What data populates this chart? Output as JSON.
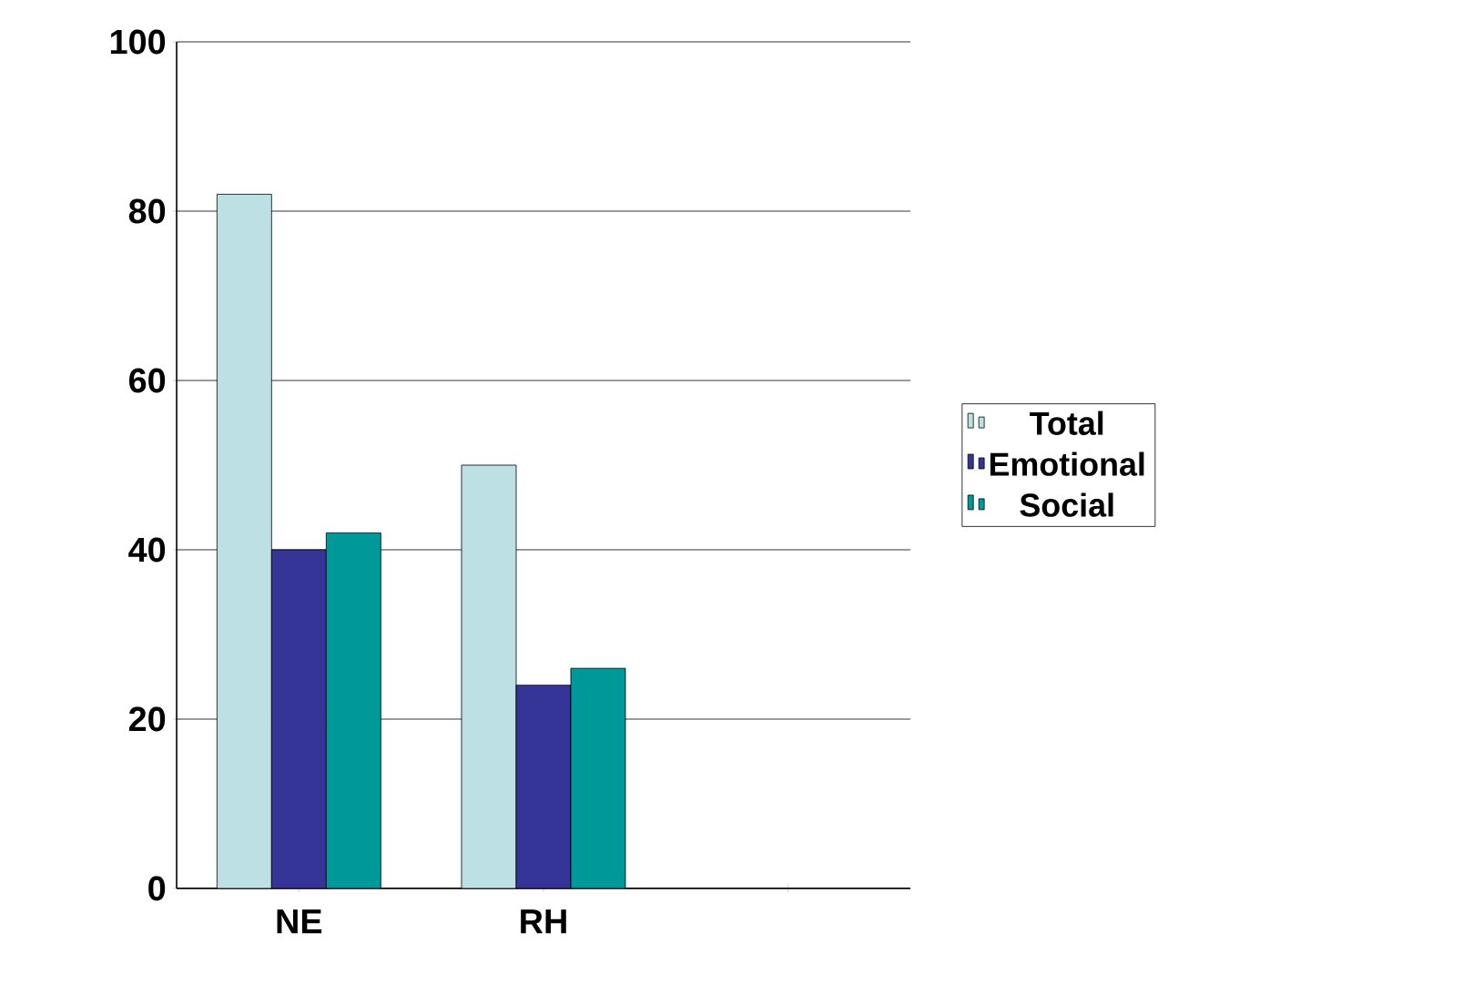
{
  "chart_data": {
    "type": "bar",
    "categories": [
      "NE",
      "RH",
      null
    ],
    "series": [
      {
        "name": "Total",
        "color": "#bce0e4",
        "values": [
          82,
          50,
          null
        ]
      },
      {
        "name": "Emotional",
        "color": "#353597",
        "values": [
          40,
          24,
          null
        ]
      },
      {
        "name": "Social",
        "color": "#009999",
        "values": [
          42,
          26,
          null
        ]
      }
    ],
    "ylim": [
      0,
      100
    ],
    "yticks": [
      0,
      20,
      40,
      60,
      80,
      100
    ],
    "grid": "y",
    "legend": "right"
  }
}
